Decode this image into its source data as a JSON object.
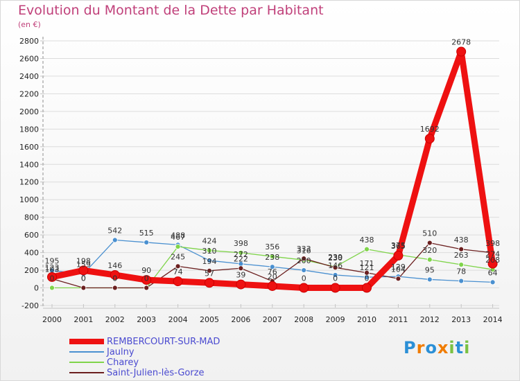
{
  "title": "Evolution du Montant de la Dette par Habitant",
  "subtitle": "(en €)",
  "brand": {
    "letters": [
      {
        "ch": "P",
        "color": "#2b8fd6"
      },
      {
        "ch": "r",
        "color": "#f07c00"
      },
      {
        "ch": "o",
        "color": "#2b8fd6"
      },
      {
        "ch": "x",
        "color": "#f07c00"
      },
      {
        "ch": "i",
        "color": "#7ac143"
      },
      {
        "ch": "t",
        "color": "#2b8fd6"
      },
      {
        "ch": "i",
        "color": "#7ac143"
      }
    ]
  },
  "chart_data": {
    "type": "line",
    "title": "Evolution du Montant de la Dette par Habitant",
    "ylabel": "(en €)",
    "xlabel": "",
    "x": [
      "2000",
      "2001",
      "2002",
      "2003",
      "2004",
      "2005",
      "2006",
      "2007",
      "2008",
      "2009",
      "2010",
      "2011",
      "2012",
      "2013",
      "2014"
    ],
    "yticks": [
      "-200",
      "0",
      "200",
      "400",
      "600",
      "800",
      "1000",
      "1200",
      "1400",
      "1600",
      "1800",
      "2000",
      "2200",
      "2400",
      "2600",
      "2800"
    ],
    "ylim": [
      -200,
      2800
    ],
    "legend_position": "bottom-left",
    "series": [
      {
        "name": "REMBERCOURT-SUR-MAD",
        "color": "#ee1111",
        "width": "thick",
        "values": [
          123,
          198,
          146,
          90,
          74,
          57,
          39,
          20,
          0,
          0,
          0,
          365,
          1692,
          2678,
          274
        ]
      },
      {
        "name": "Jaulny",
        "color": "#4a90d0",
        "width": "thin",
        "values": [
          195,
          159,
          542,
          515,
          488,
          310,
          272,
          238,
          200,
          146,
          121,
          129,
          95,
          78,
          64
        ]
      },
      {
        "name": "Charey",
        "color": "#7fd44a",
        "width": "thin",
        "values": [
          0,
          0,
          0,
          0,
          467,
          424,
          398,
          356,
          316,
          239,
          438,
          375,
          320,
          263,
          208
        ]
      },
      {
        "name": "Saint-Julien-lès-Gorze",
        "color": "#6b1f1f",
        "width": "thin",
        "values": [
          103,
          0,
          0,
          0,
          245,
          194,
          222,
          76,
          333,
          230,
          171,
          104,
          510,
          438,
          398
        ]
      }
    ]
  }
}
